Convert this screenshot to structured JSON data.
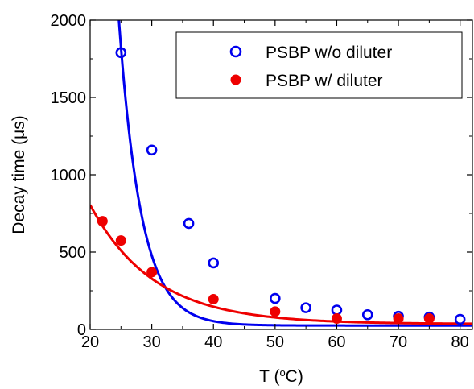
{
  "chart_data": {
    "type": "scatter",
    "xlabel": {
      "main": "T (",
      "sup": "o",
      "tail": "C)"
    },
    "ylabel": "Decay time (μs)",
    "xlim": [
      20,
      82
    ],
    "ylim": [
      0,
      2000
    ],
    "x_ticks": [
      20,
      30,
      40,
      50,
      60,
      70,
      80
    ],
    "y_ticks": [
      0,
      500,
      1000,
      1500,
      2000
    ],
    "grid": false,
    "legend_position": "top-right",
    "series": [
      {
        "name": "PSBP w/o diluter",
        "color": "#0000ee",
        "marker": "open-circle",
        "x": [
          25,
          30,
          36,
          40,
          50,
          55,
          60,
          65,
          70,
          75,
          80
        ],
        "y": [
          1790,
          1160,
          685,
          430,
          200,
          140,
          125,
          95,
          85,
          80,
          65
        ],
        "fit": {
          "A": 1800000.0,
          "k": 0.2763,
          "x0": 0,
          "c": 25
        }
      },
      {
        "name": "PSBP w/ diluter",
        "color": "#ee0000",
        "marker": "filled-circle",
        "x": [
          22,
          25,
          30,
          40,
          50,
          60,
          70,
          75
        ],
        "y": [
          700,
          575,
          370,
          195,
          115,
          70,
          70,
          70
        ],
        "fit": {
          "A": 770,
          "k": 0.0966,
          "x0": 20,
          "c": 35
        }
      }
    ]
  }
}
